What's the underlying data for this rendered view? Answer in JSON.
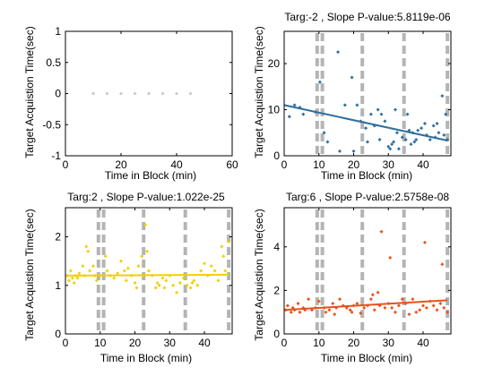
{
  "figure": {
    "background": "#ffffff"
  },
  "chart_data": [
    {
      "type": "scatter",
      "title": "",
      "xlabel": "Time in Block (min)",
      "ylabel": "Target Acquistion Time(sec)",
      "xlim": [
        0,
        60
      ],
      "ylim": [
        -1,
        1
      ],
      "xticks": [
        "0",
        "20",
        "40",
        "60"
      ],
      "yticks": [
        "-1",
        "-0.5",
        "0",
        "0.5",
        "1"
      ],
      "xtick_values": [
        0,
        20,
        40,
        60
      ],
      "ytick_values": [
        -1,
        -0.5,
        0,
        0.5,
        1
      ],
      "dashed_lines_x": [],
      "points": [
        {
          "x": 10,
          "y": 0
        },
        {
          "x": 15,
          "y": 0
        },
        {
          "x": 20,
          "y": 0
        },
        {
          "x": 25,
          "y": 0
        },
        {
          "x": 30,
          "y": 0
        },
        {
          "x": 35,
          "y": 0
        },
        {
          "x": 40,
          "y": 0
        },
        {
          "x": 45,
          "y": 0
        }
      ],
      "point_color": "#c8c8c8",
      "fit": null
    },
    {
      "type": "scatter",
      "title": "Targ:-2 , Slope P-value:5.8119e-06",
      "xlabel": "Time in Block (min)",
      "ylabel": "Target Acquistion Time(sec)",
      "xlim": [
        0,
        48
      ],
      "ylim": [
        0,
        27
      ],
      "xticks": [
        "0",
        "10",
        "20",
        "30",
        "40"
      ],
      "yticks": [
        "0",
        "10",
        "20"
      ],
      "xtick_values": [
        0,
        10,
        20,
        30,
        40
      ],
      "ytick_values": [
        0,
        10,
        20
      ],
      "dashed_lines_x": [
        9.5,
        11,
        22.5,
        34.5,
        47
      ],
      "dashed_line_color": "#b4b4b4",
      "point_color": "#2e6e9e",
      "points": [
        {
          "x": 1.5,
          "y": 8.5
        },
        {
          "x": 3,
          "y": 11
        },
        {
          "x": 4.5,
          "y": 10.5
        },
        {
          "x": 5.5,
          "y": 9
        },
        {
          "x": 9,
          "y": 9.5
        },
        {
          "x": 10.3,
          "y": 16
        },
        {
          "x": 11.5,
          "y": 5
        },
        {
          "x": 12.5,
          "y": 3
        },
        {
          "x": 15.5,
          "y": 22.5
        },
        {
          "x": 16,
          "y": 1
        },
        {
          "x": 17.5,
          "y": 11
        },
        {
          "x": 19.5,
          "y": 17
        },
        {
          "x": 20,
          "y": 1
        },
        {
          "x": 21,
          "y": 11
        },
        {
          "x": 22,
          "y": 7.5
        },
        {
          "x": 23.5,
          "y": 6
        },
        {
          "x": 24,
          "y": 3
        },
        {
          "x": 25,
          "y": 9
        },
        {
          "x": 26,
          "y": 6.5
        },
        {
          "x": 27,
          "y": 10
        },
        {
          "x": 27.5,
          "y": 3.5
        },
        {
          "x": 28,
          "y": 9
        },
        {
          "x": 29,
          "y": 7.5
        },
        {
          "x": 30,
          "y": 2
        },
        {
          "x": 30.5,
          "y": 1.5
        },
        {
          "x": 31,
          "y": 2.5
        },
        {
          "x": 31.5,
          "y": 3
        },
        {
          "x": 32,
          "y": 10
        },
        {
          "x": 32.5,
          "y": 5
        },
        {
          "x": 33,
          "y": 1.5
        },
        {
          "x": 34,
          "y": 4
        },
        {
          "x": 35,
          "y": 3.5
        },
        {
          "x": 35.5,
          "y": 9
        },
        {
          "x": 36,
          "y": 5.5
        },
        {
          "x": 36.5,
          "y": 2.5
        },
        {
          "x": 37,
          "y": 5
        },
        {
          "x": 37.5,
          "y": 3
        },
        {
          "x": 38,
          "y": 3.5
        },
        {
          "x": 38.5,
          "y": 5.5
        },
        {
          "x": 39.5,
          "y": 6
        },
        {
          "x": 40.5,
          "y": 7
        },
        {
          "x": 41,
          "y": 4.5
        },
        {
          "x": 42,
          "y": 3.5
        },
        {
          "x": 43,
          "y": 6.5
        },
        {
          "x": 43.5,
          "y": 4
        },
        {
          "x": 44,
          "y": 7
        },
        {
          "x": 44.5,
          "y": 5
        },
        {
          "x": 45.5,
          "y": 13
        },
        {
          "x": 46,
          "y": 4.5
        },
        {
          "x": 46.5,
          "y": 9
        },
        {
          "x": 47,
          "y": 3.5
        }
      ],
      "fit": {
        "x": [
          0,
          47
        ],
        "y": [
          11,
          3.3
        ],
        "color": "#2e6e9e"
      }
    },
    {
      "type": "scatter",
      "title": "Targ:2 , Slope P-value:1.022e-25",
      "xlabel": "Time in Block (min)",
      "ylabel": "Target Acquistion Time(sec)",
      "xlim": [
        0,
        48
      ],
      "ylim": [
        0,
        2.6
      ],
      "xticks": [
        "0",
        "10",
        "20",
        "30",
        "40"
      ],
      "yticks": [
        "0",
        "1",
        "2"
      ],
      "xtick_values": [
        0,
        10,
        20,
        30,
        40
      ],
      "ytick_values": [
        0,
        1,
        2
      ],
      "dashed_lines_x": [
        9.5,
        11,
        22.5,
        34.5,
        47
      ],
      "dashed_line_color": "#b4b4b4",
      "point_color": "#f0d000",
      "points": [
        {
          "x": 0.5,
          "y": 1.2
        },
        {
          "x": 1,
          "y": 1.1
        },
        {
          "x": 1.5,
          "y": 1.3
        },
        {
          "x": 2,
          "y": 1.15
        },
        {
          "x": 2.5,
          "y": 1.05
        },
        {
          "x": 3,
          "y": 1.2
        },
        {
          "x": 3.5,
          "y": 1.15
        },
        {
          "x": 4,
          "y": 1.25
        },
        {
          "x": 5,
          "y": 1.4
        },
        {
          "x": 5.5,
          "y": 1.2
        },
        {
          "x": 6,
          "y": 1.8
        },
        {
          "x": 6.5,
          "y": 1.7
        },
        {
          "x": 7,
          "y": 1.3
        },
        {
          "x": 8,
          "y": 1.4
        },
        {
          "x": 8.5,
          "y": 1.2
        },
        {
          "x": 9,
          "y": 1.1
        },
        {
          "x": 10,
          "y": 1.2
        },
        {
          "x": 11.5,
          "y": 1.6
        },
        {
          "x": 12,
          "y": 1.3
        },
        {
          "x": 13,
          "y": 1.2
        },
        {
          "x": 14,
          "y": 1.15
        },
        {
          "x": 15,
          "y": 1.25
        },
        {
          "x": 16,
          "y": 1.5
        },
        {
          "x": 17,
          "y": 1.3
        },
        {
          "x": 17.5,
          "y": 1.1
        },
        {
          "x": 18,
          "y": 1.35
        },
        {
          "x": 19,
          "y": 1.2
        },
        {
          "x": 20,
          "y": 1.05
        },
        {
          "x": 20.5,
          "y": 0.95
        },
        {
          "x": 21,
          "y": 1.4
        },
        {
          "x": 22,
          "y": 1.6
        },
        {
          "x": 22.5,
          "y": 1.2
        },
        {
          "x": 23,
          "y": 2.25
        },
        {
          "x": 23.5,
          "y": 1.7
        },
        {
          "x": 24,
          "y": 1.3
        },
        {
          "x": 25,
          "y": 1.2
        },
        {
          "x": 26,
          "y": 0.95
        },
        {
          "x": 26.5,
          "y": 1.05
        },
        {
          "x": 27,
          "y": 1.0
        },
        {
          "x": 28,
          "y": 1.15
        },
        {
          "x": 28.5,
          "y": 0.95
        },
        {
          "x": 29,
          "y": 1.1
        },
        {
          "x": 30,
          "y": 1.2
        },
        {
          "x": 31,
          "y": 1.0
        },
        {
          "x": 32,
          "y": 0.85
        },
        {
          "x": 33,
          "y": 1.05
        },
        {
          "x": 34,
          "y": 1.15
        },
        {
          "x": 35,
          "y": 1.0
        },
        {
          "x": 36,
          "y": 0.95
        },
        {
          "x": 36.5,
          "y": 1.05
        },
        {
          "x": 37,
          "y": 1.1
        },
        {
          "x": 38,
          "y": 1.0
        },
        {
          "x": 39,
          "y": 1.3
        },
        {
          "x": 40,
          "y": 1.45
        },
        {
          "x": 41,
          "y": 1.2
        },
        {
          "x": 42,
          "y": 1.4
        },
        {
          "x": 43,
          "y": 1.3
        },
        {
          "x": 44,
          "y": 1.1
        },
        {
          "x": 45,
          "y": 1.8
        },
        {
          "x": 45.5,
          "y": 1.6
        },
        {
          "x": 46,
          "y": 1.3
        },
        {
          "x": 47,
          "y": 1.9
        }
      ],
      "fit": {
        "x": [
          0,
          47
        ],
        "y": [
          1.2,
          1.22
        ],
        "color": "#f0d000"
      }
    },
    {
      "type": "scatter",
      "title": "Targ:6 , Slope P-value:2.5758e-08",
      "xlabel": "Time in Block (min)",
      "ylabel": "Target Acquistion Time(sec)",
      "xlim": [
        0,
        48
      ],
      "ylim": [
        0,
        5.8
      ],
      "xticks": [
        "0",
        "10",
        "20",
        "30",
        "40"
      ],
      "yticks": [
        "0",
        "2",
        "4"
      ],
      "xtick_values": [
        0,
        10,
        20,
        30,
        40
      ],
      "ytick_values": [
        0,
        2,
        4
      ],
      "dashed_lines_x": [
        9.5,
        11,
        22.5,
        34.5,
        47
      ],
      "dashed_line_color": "#b4b4b4",
      "point_color": "#e8521a",
      "points": [
        {
          "x": 0.5,
          "y": 1.1
        },
        {
          "x": 1,
          "y": 1.3
        },
        {
          "x": 2,
          "y": 1.0
        },
        {
          "x": 2.5,
          "y": 1.2
        },
        {
          "x": 3,
          "y": 1.1
        },
        {
          "x": 4,
          "y": 1.4
        },
        {
          "x": 4.5,
          "y": 1.0
        },
        {
          "x": 5.5,
          "y": 1.2
        },
        {
          "x": 6,
          "y": 1.1
        },
        {
          "x": 7,
          "y": 1.6
        },
        {
          "x": 8,
          "y": 1.1
        },
        {
          "x": 9,
          "y": 1.2
        },
        {
          "x": 10,
          "y": 1.5
        },
        {
          "x": 11.5,
          "y": 1.2
        },
        {
          "x": 12,
          "y": 1.0
        },
        {
          "x": 13,
          "y": 1.1
        },
        {
          "x": 14,
          "y": 1.4
        },
        {
          "x": 14.5,
          "y": 0.9
        },
        {
          "x": 15,
          "y": 1.2
        },
        {
          "x": 16,
          "y": 1.6
        },
        {
          "x": 17,
          "y": 1.3
        },
        {
          "x": 18,
          "y": 1.2
        },
        {
          "x": 19,
          "y": 1.1
        },
        {
          "x": 19.5,
          "y": 1.0
        },
        {
          "x": 20,
          "y": 1.3
        },
        {
          "x": 21,
          "y": 1.4
        },
        {
          "x": 22,
          "y": 0.95
        },
        {
          "x": 23,
          "y": 1.2
        },
        {
          "x": 24,
          "y": 1.3
        },
        {
          "x": 25,
          "y": 1.6
        },
        {
          "x": 25.5,
          "y": 1.8
        },
        {
          "x": 26,
          "y": 1.1
        },
        {
          "x": 27,
          "y": 1.9
        },
        {
          "x": 27.5,
          "y": 1.3
        },
        {
          "x": 28,
          "y": 4.7
        },
        {
          "x": 29,
          "y": 1.2
        },
        {
          "x": 30,
          "y": 1.4
        },
        {
          "x": 30.5,
          "y": 3.5
        },
        {
          "x": 31,
          "y": 1.2
        },
        {
          "x": 32,
          "y": 1.0
        },
        {
          "x": 33,
          "y": 1.3
        },
        {
          "x": 34,
          "y": 1.6
        },
        {
          "x": 35,
          "y": 1.4
        },
        {
          "x": 36,
          "y": 0.9
        },
        {
          "x": 37,
          "y": 1.6
        },
        {
          "x": 38,
          "y": 1.0
        },
        {
          "x": 39,
          "y": 1.1
        },
        {
          "x": 40,
          "y": 1.3
        },
        {
          "x": 40.5,
          "y": 4.2
        },
        {
          "x": 41,
          "y": 1.2
        },
        {
          "x": 42,
          "y": 1.5
        },
        {
          "x": 43,
          "y": 1.3
        },
        {
          "x": 44,
          "y": 1.1
        },
        {
          "x": 45,
          "y": 1.4
        },
        {
          "x": 45.5,
          "y": 3.2
        },
        {
          "x": 46,
          "y": 1.2
        },
        {
          "x": 47,
          "y": 1.0
        }
      ],
      "fit": {
        "x": [
          0,
          47
        ],
        "y": [
          1.1,
          1.55
        ],
        "color": "#e8521a"
      }
    }
  ]
}
